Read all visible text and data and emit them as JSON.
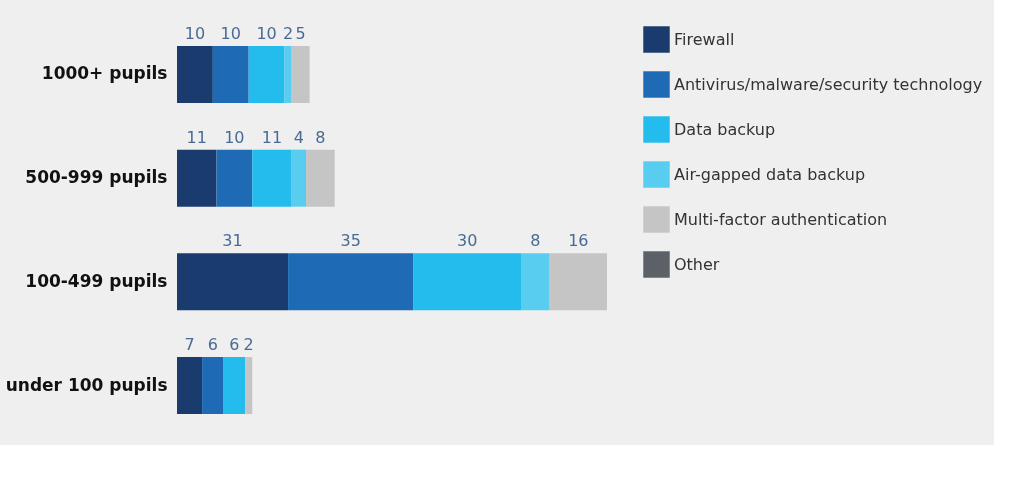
{
  "chart_data": {
    "type": "bar",
    "orientation": "horizontal",
    "stacked": true,
    "data_labels": true,
    "legend": "right",
    "grid": false,
    "categories": [
      "1000+ pupils",
      "500-999 pupils",
      "100-499 pupils",
      "under 100 pupils"
    ],
    "series": [
      {
        "name": "Firewall",
        "color": "#1a3b6e",
        "values": [
          10,
          11,
          31,
          7
        ]
      },
      {
        "name": "Antivirus/malware/security technology",
        "color": "#1f6ab4",
        "values": [
          10,
          10,
          35,
          6
        ]
      },
      {
        "name": "Data backup",
        "color": "#23bcec",
        "values": [
          10,
          11,
          30,
          6
        ]
      },
      {
        "name": "Air-gapped data backup",
        "color": "#58cdf0",
        "values": [
          2,
          4,
          8,
          null
        ]
      },
      {
        "name": "Multi-factor authentication",
        "color": "#c5c5c5",
        "values": [
          5,
          8,
          16,
          2
        ]
      },
      {
        "name": "Other",
        "color": "#5b6167",
        "values": [
          null,
          null,
          null,
          null
        ]
      }
    ]
  }
}
